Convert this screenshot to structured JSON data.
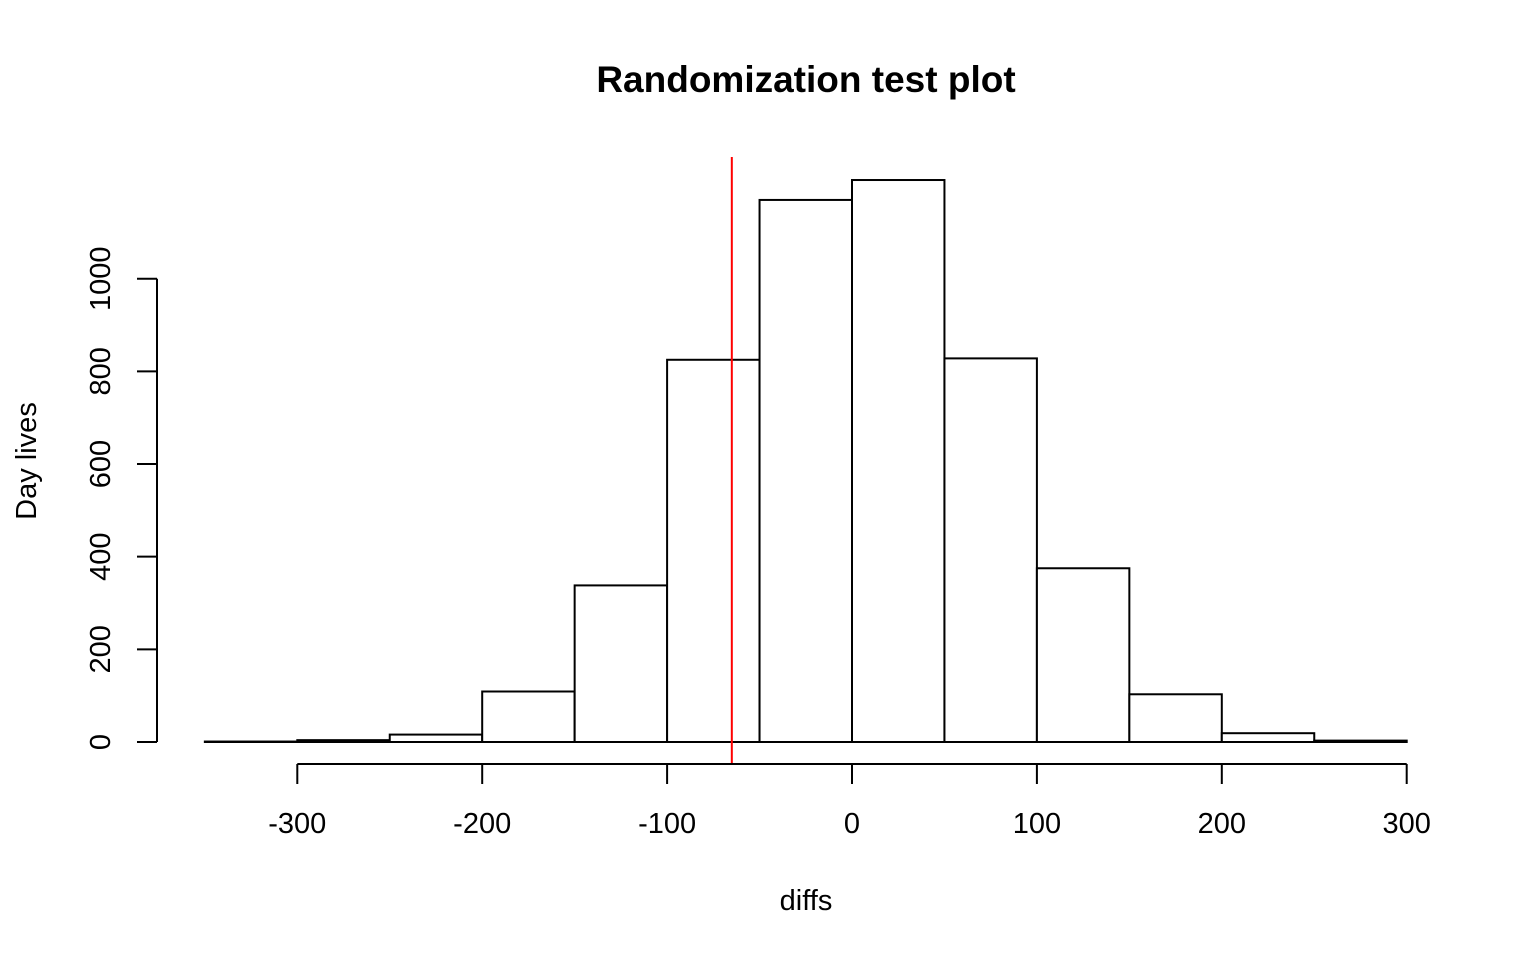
{
  "chart_data": {
    "type": "bar",
    "subtype": "histogram",
    "title": "Randomization test plot",
    "xlabel": "diffs",
    "ylabel": "Day lives",
    "bin_edges": [
      -350,
      -300,
      -250,
      -200,
      -150,
      -100,
      -50,
      0,
      50,
      100,
      150,
      200,
      250,
      300
    ],
    "counts": [
      1,
      4,
      16,
      109,
      338,
      825,
      1170,
      1213,
      828,
      375,
      103,
      19,
      3
    ],
    "xlim": [
      -350,
      300
    ],
    "ylim": [
      0,
      1213
    ],
    "x_ticks": [
      -300,
      -200,
      -100,
      0,
      100,
      200,
      300
    ],
    "y_ticks": [
      0,
      200,
      400,
      600,
      800,
      1000
    ],
    "reference_line": {
      "x": -65,
      "color": "#ff0000"
    },
    "bar_fill": "#ffffff",
    "bar_stroke": "#000000",
    "grid": false,
    "legend": "none"
  }
}
